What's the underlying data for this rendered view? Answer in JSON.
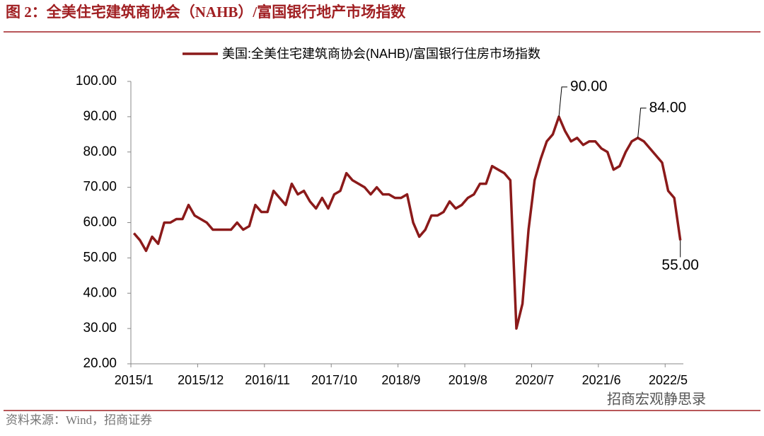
{
  "chart_data": {
    "type": "line",
    "title": "图 2：全美住宅建筑商协会（NAHB）/富国银行地产市场指数",
    "source": "资料来源：Wind，招商证券",
    "watermark": "招商宏观静思录",
    "categories": [
      "2015/1",
      null,
      null,
      null,
      null,
      null,
      null,
      null,
      null,
      null,
      null,
      "2015/12",
      null,
      null,
      null,
      null,
      null,
      null,
      null,
      null,
      null,
      null,
      "2016/11",
      null,
      null,
      null,
      null,
      null,
      null,
      null,
      null,
      null,
      null,
      "2017/10",
      null,
      null,
      null,
      null,
      null,
      null,
      null,
      null,
      null,
      null,
      "2018/9",
      null,
      null,
      null,
      null,
      null,
      null,
      null,
      null,
      null,
      null,
      "2019/8",
      null,
      null,
      null,
      null,
      null,
      null,
      null,
      null,
      null,
      null,
      "2020/7",
      null,
      null,
      null,
      null,
      null,
      null,
      null,
      null,
      null,
      null,
      "2021/6",
      null,
      null,
      null,
      null,
      null,
      null,
      null,
      null,
      null,
      null,
      "2022/5",
      null,
      null
    ],
    "series": [
      {
        "name": "美国:全美住宅建筑商协会(NAHB)/富国银行住房市场指数",
        "color": "#8b1a1a",
        "values": [
          57,
          55,
          52,
          56,
          54,
          60,
          60,
          61,
          61,
          65,
          62,
          61,
          60,
          58,
          58,
          58,
          58,
          60,
          58,
          59,
          65,
          63,
          63,
          69,
          67,
          65,
          71,
          68,
          69,
          66,
          64,
          67,
          64,
          68,
          69,
          74,
          72,
          71,
          70,
          68,
          70,
          68,
          68,
          67,
          67,
          68,
          60,
          56,
          58,
          62,
          62,
          63,
          66,
          64,
          65,
          67,
          68,
          71,
          71,
          76,
          75,
          74,
          72,
          30,
          37,
          58,
          72,
          78,
          83,
          85,
          90,
          86,
          83,
          84,
          82,
          83,
          83,
          81,
          80,
          75,
          76,
          80,
          83,
          84,
          83,
          81,
          79,
          77,
          69,
          67,
          55
        ],
        "value_labels": [
          null,
          null,
          null,
          null,
          null,
          null,
          null,
          null,
          null,
          null,
          null,
          null,
          null,
          null,
          null,
          null,
          null,
          null,
          null,
          null,
          null,
          null,
          null,
          null,
          null,
          null,
          null,
          null,
          null,
          null,
          null,
          null,
          null,
          null,
          null,
          null,
          null,
          null,
          null,
          null,
          null,
          null,
          null,
          null,
          null,
          null,
          null,
          null,
          null,
          null,
          null,
          null,
          null,
          null,
          null,
          null,
          null,
          null,
          null,
          null,
          null,
          null,
          null,
          null,
          null,
          null,
          null,
          null,
          null,
          null,
          "90.00",
          null,
          null,
          null,
          null,
          null,
          null,
          null,
          null,
          null,
          null,
          null,
          null,
          "84.00",
          null,
          null,
          null,
          null,
          null,
          null,
          "55.00"
        ]
      }
    ],
    "ylim": [
      20,
      100
    ],
    "yticks": [
      {
        "value": 20,
        "label": "20.00"
      },
      {
        "value": 30,
        "label": "30.00"
      },
      {
        "value": 40,
        "label": "40.00"
      },
      {
        "value": 50,
        "label": "50.00"
      },
      {
        "value": 60,
        "label": "60.00"
      },
      {
        "value": 70,
        "label": "70.00"
      },
      {
        "value": 80,
        "label": "80.00"
      },
      {
        "value": 90,
        "label": "90.00"
      },
      {
        "value": 100,
        "label": "100.00"
      }
    ],
    "legend": "top"
  }
}
